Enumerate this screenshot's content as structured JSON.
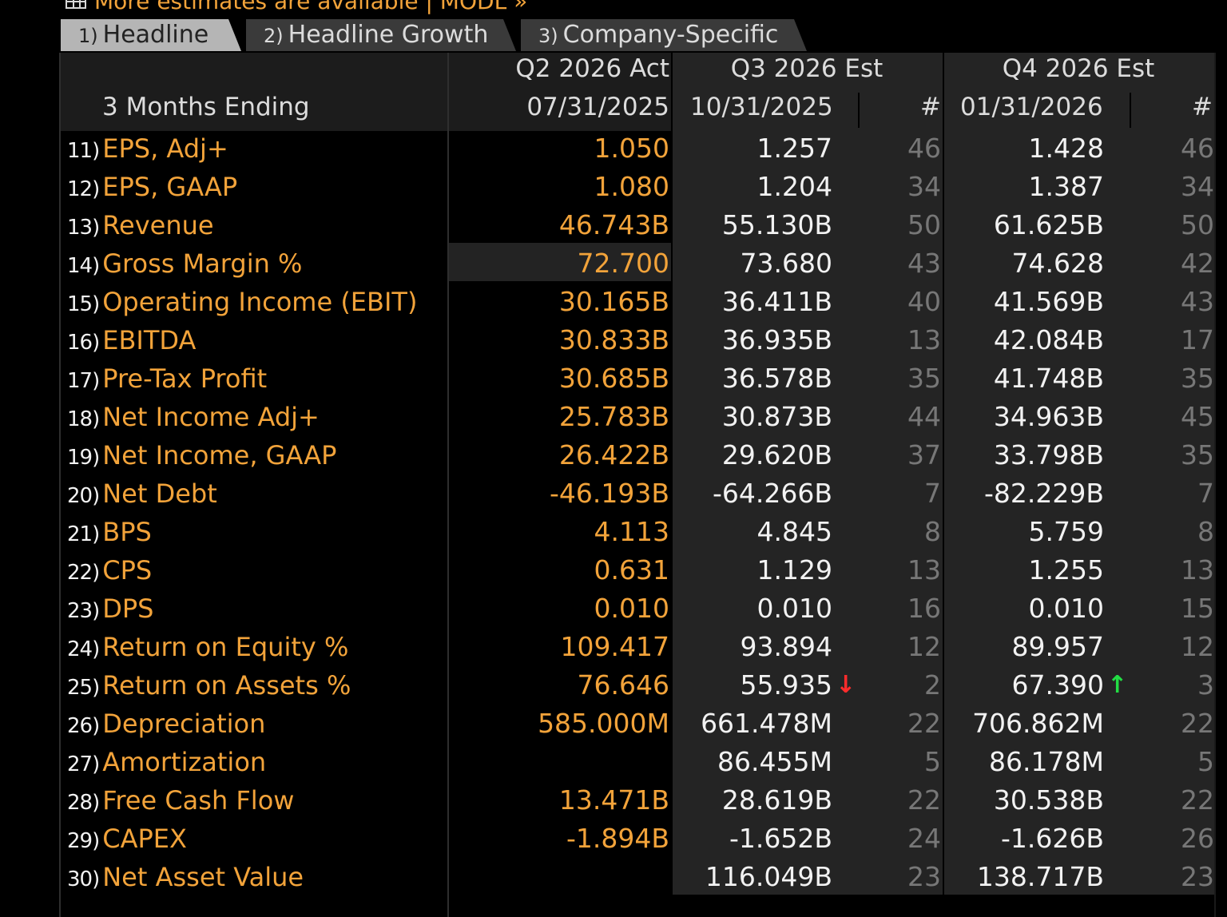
{
  "top_link": {
    "text": "More estimates are available | MODL »",
    "icon": "grid-icon"
  },
  "tabs": [
    {
      "num": "1)",
      "label": "Headline"
    },
    {
      "num": "2)",
      "label": "Headline Growth"
    },
    {
      "num": "3)",
      "label": "Company-Specific"
    }
  ],
  "header": {
    "period_label": "3 Months Ending",
    "act_title": "Q2 2026 Act",
    "act_date": "07/31/2025",
    "q3_title": "Q3 2026 Est",
    "q3_date": "10/31/2025",
    "q3_count_hdr": "#",
    "q4_title": "Q4 2026 Est",
    "q4_date": "01/31/2026",
    "q4_count_hdr": "#"
  },
  "colors": {
    "orange": "#f2a33a",
    "down_arrow": "#ff2c2c",
    "up_arrow": "#22dd44"
  },
  "rows": [
    {
      "num": "11)",
      "label": "EPS, Adj+",
      "act": "1.050",
      "q3": "1.257",
      "q3n": "46",
      "q4": "1.428",
      "q4n": "46"
    },
    {
      "num": "12)",
      "label": "EPS, GAAP",
      "act": "1.080",
      "q3": "1.204",
      "q3n": "34",
      "q4": "1.387",
      "q4n": "34"
    },
    {
      "num": "13)",
      "label": "Revenue",
      "act": "46.743B",
      "q3": "55.130B",
      "q3n": "50",
      "q4": "61.625B",
      "q4n": "50"
    },
    {
      "num": "14)",
      "label": "Gross Margin %",
      "act": "72.700",
      "q3": "73.680",
      "q3n": "43",
      "q4": "74.628",
      "q4n": "42"
    },
    {
      "num": "15)",
      "label": "Operating Income (EBIT)",
      "act": "30.165B",
      "q3": "36.411B",
      "q3n": "40",
      "q4": "41.569B",
      "q4n": "43"
    },
    {
      "num": "16)",
      "label": "EBITDA",
      "act": "30.833B",
      "q3": "36.935B",
      "q3n": "13",
      "q4": "42.084B",
      "q4n": "17"
    },
    {
      "num": "17)",
      "label": "Pre-Tax Profit",
      "act": "30.685B",
      "q3": "36.578B",
      "q3n": "35",
      "q4": "41.748B",
      "q4n": "35"
    },
    {
      "num": "18)",
      "label": "Net Income Adj+",
      "act": "25.783B",
      "q3": "30.873B",
      "q3n": "44",
      "q4": "34.963B",
      "q4n": "45"
    },
    {
      "num": "19)",
      "label": "Net Income, GAAP",
      "act": "26.422B",
      "q3": "29.620B",
      "q3n": "37",
      "q4": "33.798B",
      "q4n": "35"
    },
    {
      "num": "20)",
      "label": "Net Debt",
      "act": "-46.193B",
      "q3": "-64.266B",
      "q3n": "7",
      "q4": "-82.229B",
      "q4n": "7"
    },
    {
      "num": "21)",
      "label": "BPS",
      "act": "4.113",
      "q3": "4.845",
      "q3n": "8",
      "q4": "5.759",
      "q4n": "8"
    },
    {
      "num": "22)",
      "label": "CPS",
      "act": "0.631",
      "q3": "1.129",
      "q3n": "13",
      "q4": "1.255",
      "q4n": "13"
    },
    {
      "num": "23)",
      "label": "DPS",
      "act": "0.010",
      "q3": "0.010",
      "q3n": "16",
      "q4": "0.010",
      "q4n": "15"
    },
    {
      "num": "24)",
      "label": "Return on Equity %",
      "act": "109.417",
      "q3": "93.894",
      "q3n": "12",
      "q4": "89.957",
      "q4n": "12"
    },
    {
      "num": "25)",
      "label": "Return on Assets %",
      "act": "76.646",
      "q3": "55.935",
      "q3_arrow": "down",
      "q3n": "2",
      "q4": "67.390",
      "q4_arrow": "up",
      "q4n": "3"
    },
    {
      "num": "26)",
      "label": "Depreciation",
      "act": "585.000M",
      "q3": "661.478M",
      "q3n": "22",
      "q4": "706.862M",
      "q4n": "22"
    },
    {
      "num": "27)",
      "label": "Amortization",
      "act": "",
      "q3": "86.455M",
      "q3n": "5",
      "q4": "86.178M",
      "q4n": "5"
    },
    {
      "num": "28)",
      "label": "Free Cash Flow",
      "act": "13.471B",
      "q3": "28.619B",
      "q3n": "22",
      "q4": "30.538B",
      "q4n": "22"
    },
    {
      "num": "29)",
      "label": "CAPEX",
      "act": "-1.894B",
      "q3": "-1.652B",
      "q3n": "24",
      "q4": "-1.626B",
      "q4n": "26"
    },
    {
      "num": "30)",
      "label": "Net Asset Value",
      "act": "",
      "q3": "116.049B",
      "q3n": "23",
      "q4": "138.717B",
      "q4n": "23"
    }
  ]
}
